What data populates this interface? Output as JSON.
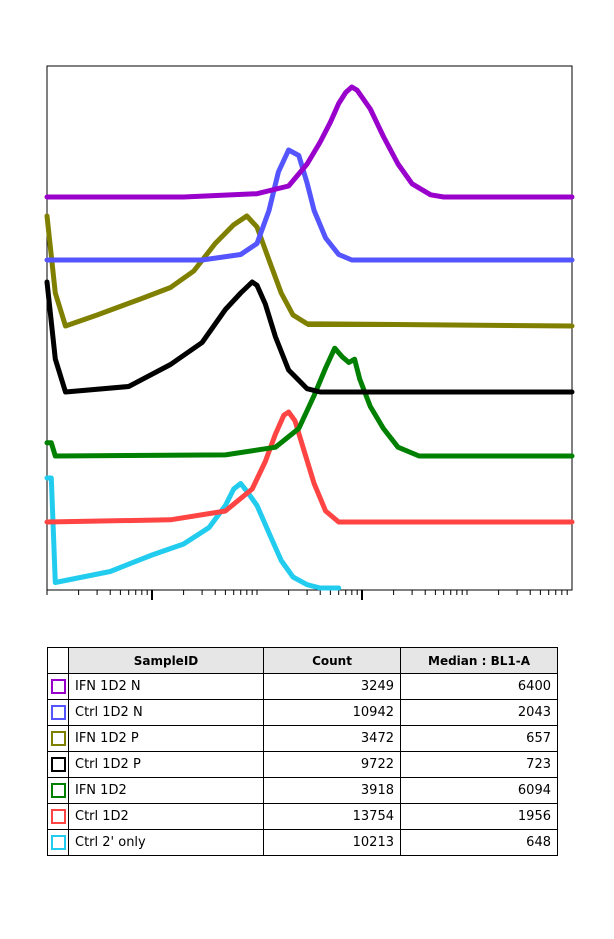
{
  "chart_data": {
    "type": "area",
    "title": "",
    "xlabel": "BL1-A",
    "ylabel": "",
    "x_scale": "log",
    "xlim": [
      10,
      1000000
    ],
    "layout": "offset overlay histograms",
    "series": [
      {
        "name": "IFN 1D2 N",
        "color": "#9900cc",
        "count": 3249,
        "median": 6400,
        "x": [
          10,
          200,
          1000,
          2000,
          3000,
          4000,
          5000,
          6000,
          7000,
          8000,
          9000,
          12000,
          16000,
          22000,
          30000,
          45000,
          60000,
          1000000
        ],
        "y": [
          0,
          0,
          0.03,
          0.1,
          0.3,
          0.5,
          0.68,
          0.85,
          0.95,
          1.0,
          0.97,
          0.8,
          0.55,
          0.3,
          0.12,
          0.02,
          0,
          0
        ]
      },
      {
        "name": "Ctrl 1D2 N",
        "color": "#5555ff",
        "count": 10942,
        "median": 2043,
        "x": [
          10,
          300,
          700,
          1000,
          1300,
          1600,
          2000,
          2500,
          3000,
          3500,
          4500,
          6000,
          8000,
          1000000
        ],
        "y": [
          0,
          0,
          0.05,
          0.15,
          0.45,
          0.8,
          1.0,
          0.95,
          0.7,
          0.45,
          0.2,
          0.05,
          0,
          0
        ]
      },
      {
        "name": "IFN 1D2 P",
        "color": "#808000",
        "count": 3472,
        "median": 657,
        "x": [
          10,
          12,
          15,
          30,
          80,
          150,
          250,
          400,
          600,
          800,
          1000,
          1300,
          1700,
          2200,
          3000,
          1000000
        ],
        "y": [
          1.0,
          0.3,
          0.0,
          0.1,
          0.25,
          0.35,
          0.5,
          0.75,
          0.92,
          1.0,
          0.9,
          0.6,
          0.3,
          0.1,
          0.02,
          0
        ]
      },
      {
        "name": "Ctrl 1D2 P",
        "color": "#000000",
        "count": 9722,
        "median": 723,
        "x": [
          10,
          12,
          15,
          60,
          150,
          300,
          500,
          700,
          900,
          1000,
          1200,
          1500,
          2000,
          3000,
          4000,
          1000000
        ],
        "y": [
          1.0,
          0.3,
          0.0,
          0.05,
          0.25,
          0.45,
          0.75,
          0.9,
          1.0,
          0.97,
          0.8,
          0.5,
          0.2,
          0.03,
          0,
          0
        ]
      },
      {
        "name": "IFN 1D2",
        "color": "#008000",
        "count": 3918,
        "median": 6094,
        "x": [
          10,
          11,
          12,
          500,
          1500,
          2500,
          3500,
          4500,
          5500,
          6500,
          7500,
          8500,
          9500,
          12000,
          16000,
          22000,
          35000,
          1000000
        ],
        "y": [
          0.12,
          0.12,
          0,
          0.01,
          0.08,
          0.25,
          0.55,
          0.8,
          0.98,
          0.9,
          0.85,
          0.88,
          0.7,
          0.45,
          0.25,
          0.08,
          0,
          0
        ]
      },
      {
        "name": "Ctrl 1D2",
        "color": "#ff4444",
        "count": 13754,
        "median": 1956,
        "x": [
          10,
          150,
          500,
          900,
          1200,
          1500,
          1800,
          2000,
          2300,
          2800,
          3500,
          4500,
          6000,
          1000000
        ],
        "y": [
          0,
          0.02,
          0.1,
          0.3,
          0.55,
          0.8,
          0.97,
          1.0,
          0.92,
          0.65,
          0.35,
          0.1,
          0,
          0
        ]
      },
      {
        "name": "Ctrl 2' only",
        "color": "#22ccee",
        "count": 10213,
        "median": 648,
        "x": [
          10,
          11,
          12,
          40,
          100,
          200,
          350,
          500,
          600,
          700,
          800,
          1000,
          1300,
          1700,
          2200,
          3000,
          4000,
          6000
        ],
        "y": [
          1.0,
          1.0,
          0.05,
          0.15,
          0.3,
          0.4,
          0.55,
          0.75,
          0.9,
          0.95,
          0.88,
          0.75,
          0.5,
          0.25,
          0.1,
          0.03,
          0,
          0
        ]
      }
    ]
  },
  "table": {
    "headers": [
      "SampleID",
      "Count",
      "Median : BL1-A"
    ],
    "rows": [
      {
        "sample": "IFN 1D2 N",
        "count": "3249",
        "median": "6400",
        "color": "#9900cc"
      },
      {
        "sample": "Ctrl 1D2 N",
        "count": "10942",
        "median": "2043",
        "color": "#5555ff"
      },
      {
        "sample": "IFN 1D2 P",
        "count": "3472",
        "median": "657",
        "color": "#808000"
      },
      {
        "sample": "Ctrl 1D2 P",
        "count": "9722",
        "median": "723",
        "color": "#000000"
      },
      {
        "sample": "IFN 1D2",
        "count": "3918",
        "median": "6094",
        "color": "#008000"
      },
      {
        "sample": "Ctrl 1D2",
        "count": "13754",
        "median": "1956",
        "color": "#ff4444"
      },
      {
        "sample": "Ctrl 2' only",
        "count": "10213",
        "median": "648",
        "color": "#22ccee"
      }
    ]
  }
}
